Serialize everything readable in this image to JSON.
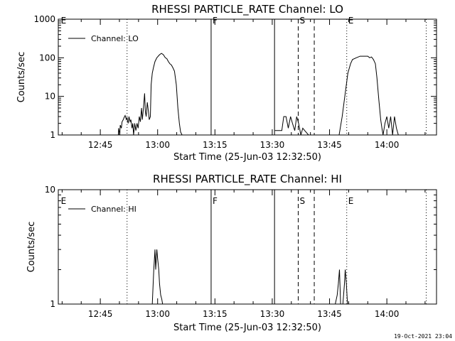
{
  "chart_data": [
    {
      "type": "line",
      "title": "RHESSI PARTICLE_RATE Channel: LO",
      "xlabel": "Start Time (25-Jun-03 12:32:50)",
      "ylabel": "Counts/sec",
      "yscale": "log",
      "ylim": [
        1,
        1000
      ],
      "yticks": [
        1,
        10,
        100,
        1000
      ],
      "ytick_labels": [
        "1",
        "10",
        "100",
        "1000"
      ],
      "xlim_min": [
        34,
        133
      ],
      "xticks_min": [
        45,
        60,
        75,
        90,
        105,
        120
      ],
      "xtick_labels": [
        "12:45",
        "13:00",
        "13:15",
        "13:30",
        "13:45",
        "14:00"
      ],
      "legend": "Channel: LO",
      "flags": [
        {
          "label": "E",
          "t": 34.3,
          "style": "none"
        },
        {
          "label": "",
          "t": 52.0,
          "style": "dotted"
        },
        {
          "label": "F",
          "t": 74.0,
          "style": "solid"
        },
        {
          "label": "",
          "t": 90.6,
          "style": "solid"
        },
        {
          "label": "S",
          "t": 96.8,
          "style": "dashed"
        },
        {
          "label": "",
          "t": 101.0,
          "style": "dashed"
        },
        {
          "label": "E",
          "t": 109.5,
          "style": "dotted"
        },
        {
          "label": "",
          "t": 130.3,
          "style": "dotted"
        }
      ],
      "series": [
        {
          "name": "Channel: LO",
          "x": [
            49.7,
            49.8,
            50.1,
            50.2,
            50.5,
            50.7,
            51.0,
            51.2,
            51.5,
            51.8,
            52.0,
            52.3,
            52.5,
            52.8,
            53.0,
            53.3,
            53.5,
            53.7,
            54.0,
            54.3,
            54.6,
            54.9,
            55.2,
            55.5,
            55.8,
            56.0,
            56.3,
            56.6,
            56.8,
            57.0,
            57.3,
            57.6,
            57.8,
            58.1,
            58.3,
            58.6,
            58.9,
            59.3,
            59.8,
            60.5,
            61.0,
            61.5,
            62.0,
            62.4,
            62.8,
            63.2,
            63.6,
            64.0,
            64.4,
            64.9,
            65.3,
            65.7,
            66.0,
            66.4
          ],
          "values": [
            1,
            1.5,
            1,
            1.8,
            1.5,
            2.2,
            2.5,
            2.8,
            3.2,
            2.5,
            2.8,
            2,
            3,
            2.2,
            2.5,
            1.5,
            2,
            1,
            2,
            1.3,
            2,
            1.5,
            3,
            2.2,
            5,
            2.5,
            5,
            12,
            4,
            3,
            7,
            4,
            2.5,
            3,
            20,
            40,
            55,
            80,
            100,
            120,
            130,
            120,
            100,
            95,
            80,
            70,
            65,
            55,
            45,
            20,
            5,
            2,
            1.2,
            1
          ]
        },
        {
          "name": "Channel: LO (second segment)",
          "x": [
            90.7,
            91.5,
            92.5,
            93.0,
            93.6,
            94.2,
            94.8,
            95.3,
            95.9,
            96.4,
            96.9,
            97.5,
            98.0,
            98.5,
            99.5,
            100.5,
            101.5,
            102.5,
            103.5,
            104.5,
            105.5,
            106.5,
            107.5,
            108.3,
            109.0,
            109.8,
            110.5,
            111.0,
            112.0,
            113.0,
            114.0,
            115.0,
            115.5,
            116.0,
            116.5,
            117.0,
            117.4,
            117.9,
            118.4,
            118.7,
            119.0,
            119.5,
            120.0,
            120.5,
            121.0,
            121.5,
            122.0,
            122.5,
            123.0
          ],
          "values": [
            1.3,
            1.3,
            1.3,
            3,
            3,
            1.5,
            3,
            2,
            1.3,
            3,
            2,
            1,
            1.5,
            1.3,
            1,
            1,
            1,
            1,
            1,
            1,
            1,
            1,
            1,
            3,
            10,
            40,
            70,
            90,
            100,
            110,
            110,
            110,
            100,
            105,
            90,
            70,
            30,
            8,
            2.5,
            1.5,
            1,
            2,
            3,
            1.5,
            3,
            1,
            3,
            1.5,
            1
          ]
        }
      ]
    },
    {
      "type": "line",
      "title": "RHESSI PARTICLE_RATE Channel: HI",
      "xlabel": "Start Time (25-Jun-03 12:32:50)",
      "ylabel": "Counts/sec",
      "yscale": "log",
      "ylim": [
        1,
        10
      ],
      "yticks": [
        1,
        10
      ],
      "ytick_labels": [
        "1",
        "10"
      ],
      "xlim_min": [
        34,
        133
      ],
      "xticks_min": [
        45,
        60,
        75,
        90,
        105,
        120
      ],
      "xtick_labels": [
        "12:45",
        "13:00",
        "13:15",
        "13:30",
        "13:45",
        "14:00"
      ],
      "legend": "Channel: HI",
      "flags": [
        {
          "label": "E",
          "t": 34.3,
          "style": "none"
        },
        {
          "label": "",
          "t": 52.0,
          "style": "dotted"
        },
        {
          "label": "F",
          "t": 74.0,
          "style": "solid"
        },
        {
          "label": "",
          "t": 90.6,
          "style": "solid"
        },
        {
          "label": "S",
          "t": 96.8,
          "style": "dashed"
        },
        {
          "label": "",
          "t": 101.0,
          "style": "dashed"
        },
        {
          "label": "E",
          "t": 109.5,
          "style": "dotted"
        },
        {
          "label": "",
          "t": 130.3,
          "style": "dotted"
        }
      ],
      "series": [
        {
          "name": "Channel: HI",
          "x": [
            58.6,
            59.0,
            59.3,
            59.5,
            59.8,
            60.0,
            60.3,
            60.5,
            60.8,
            61.1,
            61.3
          ],
          "values": [
            1,
            2,
            3,
            2,
            3,
            2.5,
            2,
            1.5,
            1.2,
            1.1,
            1
          ]
        },
        {
          "name": "Channel: HI (second segment)",
          "x": [
            105.9,
            106.5,
            107.0,
            107.3,
            107.6,
            107.9,
            108.2,
            108.5,
            108.9,
            109.1,
            109.4,
            109.7
          ],
          "values": [
            1,
            1,
            1.2,
            1.5,
            2,
            1,
            1,
            1,
            1.5,
            2,
            1.5,
            1
          ]
        }
      ]
    }
  ],
  "timestamp": "19-Oct-2021 23:04"
}
